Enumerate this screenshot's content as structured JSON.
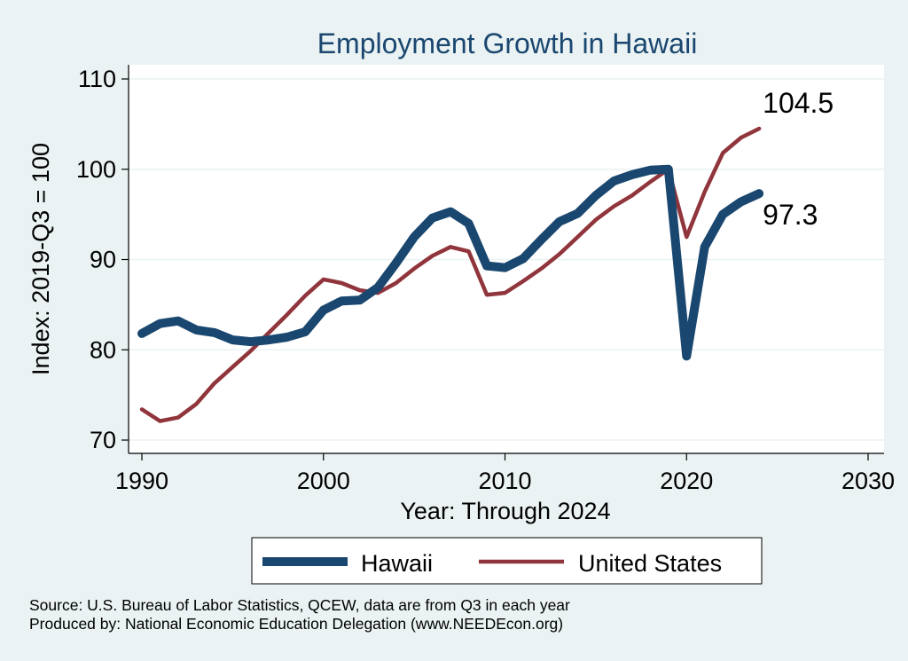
{
  "chart_data": {
    "type": "line",
    "title": "Employment Growth in Hawaii",
    "xlabel": "Year: Through 2024",
    "ylabel": "Index: 2019-Q3 = 100",
    "xlim": [
      1990,
      2030
    ],
    "ylim": [
      70,
      110
    ],
    "xticks": [
      1990,
      2000,
      2010,
      2020,
      2030
    ],
    "yticks": [
      70,
      80,
      90,
      100,
      110
    ],
    "grid": true,
    "legend_position": "bottom",
    "x": [
      1990,
      1991,
      1992,
      1993,
      1994,
      1995,
      1996,
      1997,
      1998,
      1999,
      2000,
      2001,
      2002,
      2003,
      2004,
      2005,
      2006,
      2007,
      2008,
      2009,
      2010,
      2011,
      2012,
      2013,
      2014,
      2015,
      2016,
      2017,
      2018,
      2019,
      2020,
      2021,
      2022,
      2023,
      2024
    ],
    "series": [
      {
        "name": "Hawaii",
        "color": "#1a476f",
        "values": [
          81.8,
          82.9,
          83.2,
          82.2,
          81.9,
          81.1,
          80.9,
          81.1,
          81.4,
          82.0,
          84.4,
          85.4,
          85.5,
          86.9,
          89.6,
          92.5,
          94.6,
          95.3,
          94.0,
          89.3,
          89.1,
          90.1,
          92.2,
          94.2,
          95.1,
          97.1,
          98.7,
          99.4,
          99.9,
          100.0,
          79.3,
          91.4,
          95.0,
          96.4,
          97.3
        ],
        "end_label": "97.3"
      },
      {
        "name": "United States",
        "color": "#90353b",
        "values": [
          73.4,
          72.1,
          72.5,
          74.0,
          76.3,
          78.1,
          79.9,
          81.9,
          83.9,
          86.0,
          87.8,
          87.4,
          86.6,
          86.3,
          87.4,
          89.0,
          90.4,
          91.4,
          90.9,
          86.1,
          86.3,
          87.6,
          89.0,
          90.6,
          92.5,
          94.4,
          95.9,
          97.1,
          98.6,
          100.0,
          92.5,
          97.5,
          101.8,
          103.5,
          104.5
        ],
        "end_label": "104.5"
      }
    ]
  },
  "notes": {
    "source": "Source: U.S. Bureau of Labor Statistics, QCEW, data are from Q3 in each year",
    "produced_by": "Produced by: National Economic Education Delegation (www.NEEDEcon.org)"
  },
  "colors": {
    "background": "#eaf2f3",
    "plot_background": "#ffffff",
    "grid": "#eaf2f3"
  }
}
